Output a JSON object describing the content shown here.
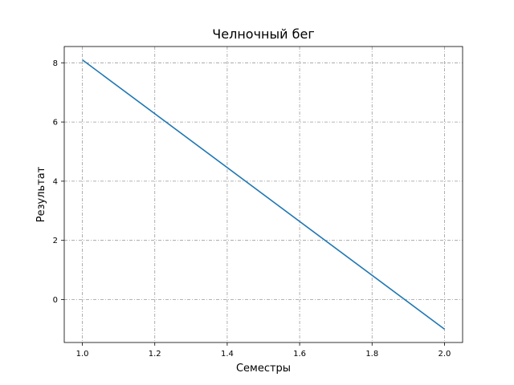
{
  "chart_data": {
    "type": "line",
    "title": "Челночный бег",
    "xlabel": "Семестры",
    "ylabel": "Результат",
    "xlim": [
      0.95,
      2.05
    ],
    "ylim": [
      -1.45,
      8.55
    ],
    "xticks": [
      1.0,
      1.2,
      1.4,
      1.6,
      1.8,
      2.0
    ],
    "xtick_labels": [
      "1.0",
      "1.2",
      "1.4",
      "1.6",
      "1.8",
      "2.0"
    ],
    "yticks": [
      0,
      2,
      4,
      6,
      8
    ],
    "ytick_labels": [
      "0",
      "2",
      "4",
      "6",
      "8"
    ],
    "grid": true,
    "series": [
      {
        "x": [
          1.0,
          2.0
        ],
        "y": [
          8.1,
          -1.0
        ],
        "color": "#1f77b4"
      }
    ]
  }
}
